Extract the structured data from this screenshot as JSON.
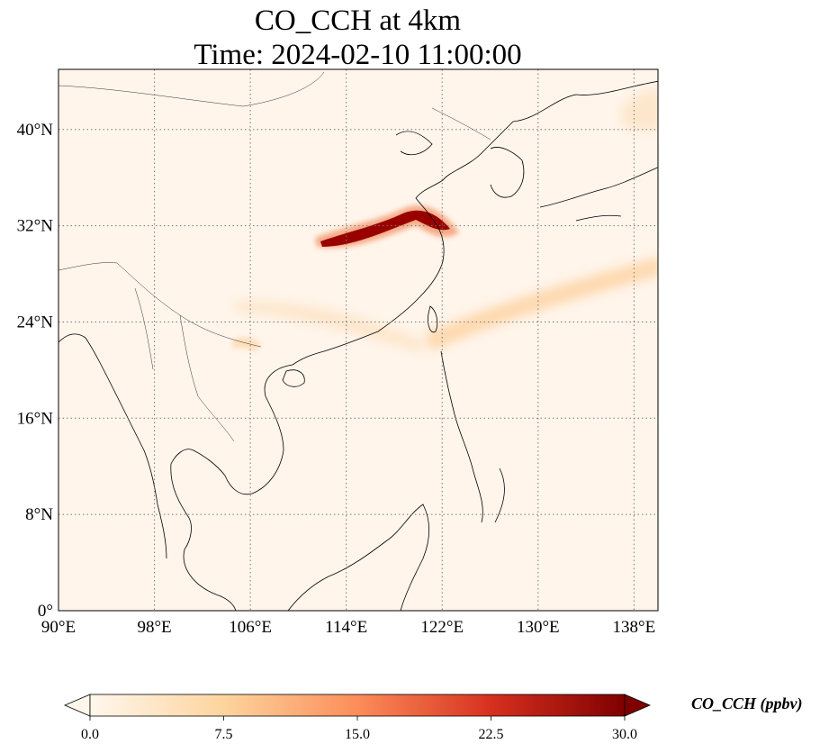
{
  "title": {
    "line1": "CO_CCH at 4km",
    "line2": "Time: 2024-02-10 11:00:00"
  },
  "map": {
    "lon_range": [
      90,
      140
    ],
    "lat_range": [
      0,
      45
    ],
    "lon_ticks": [
      {
        "value": 90,
        "label": "90°E"
      },
      {
        "value": 98,
        "label": "98°E"
      },
      {
        "value": 106,
        "label": "106°E"
      },
      {
        "value": 114,
        "label": "114°E"
      },
      {
        "value": 122,
        "label": "122°E"
      },
      {
        "value": 130,
        "label": "130°E"
      },
      {
        "value": 138,
        "label": "138°E"
      }
    ],
    "lat_ticks": [
      {
        "value": 0,
        "label": "0°"
      },
      {
        "value": 8,
        "label": "8°N"
      },
      {
        "value": 16,
        "label": "16°N"
      },
      {
        "value": 24,
        "label": "24°N"
      },
      {
        "value": 32,
        "label": "32°N"
      },
      {
        "value": 40,
        "label": "40°N"
      }
    ],
    "grid": "dotted",
    "background_color": "#fff5eb",
    "coastline_color": "#000000"
  },
  "colorbar": {
    "label": "CO_CCH (ppbv)",
    "min": 0.0,
    "max": 30.0,
    "extend": "both",
    "colormap": "OrRd",
    "ticks": [
      {
        "value": 0.0,
        "label": "0.0"
      },
      {
        "value": 7.5,
        "label": "7.5"
      },
      {
        "value": 15.0,
        "label": "15.0"
      },
      {
        "value": 22.5,
        "label": "22.5"
      },
      {
        "value": 30.0,
        "label": "30.0"
      }
    ]
  }
}
